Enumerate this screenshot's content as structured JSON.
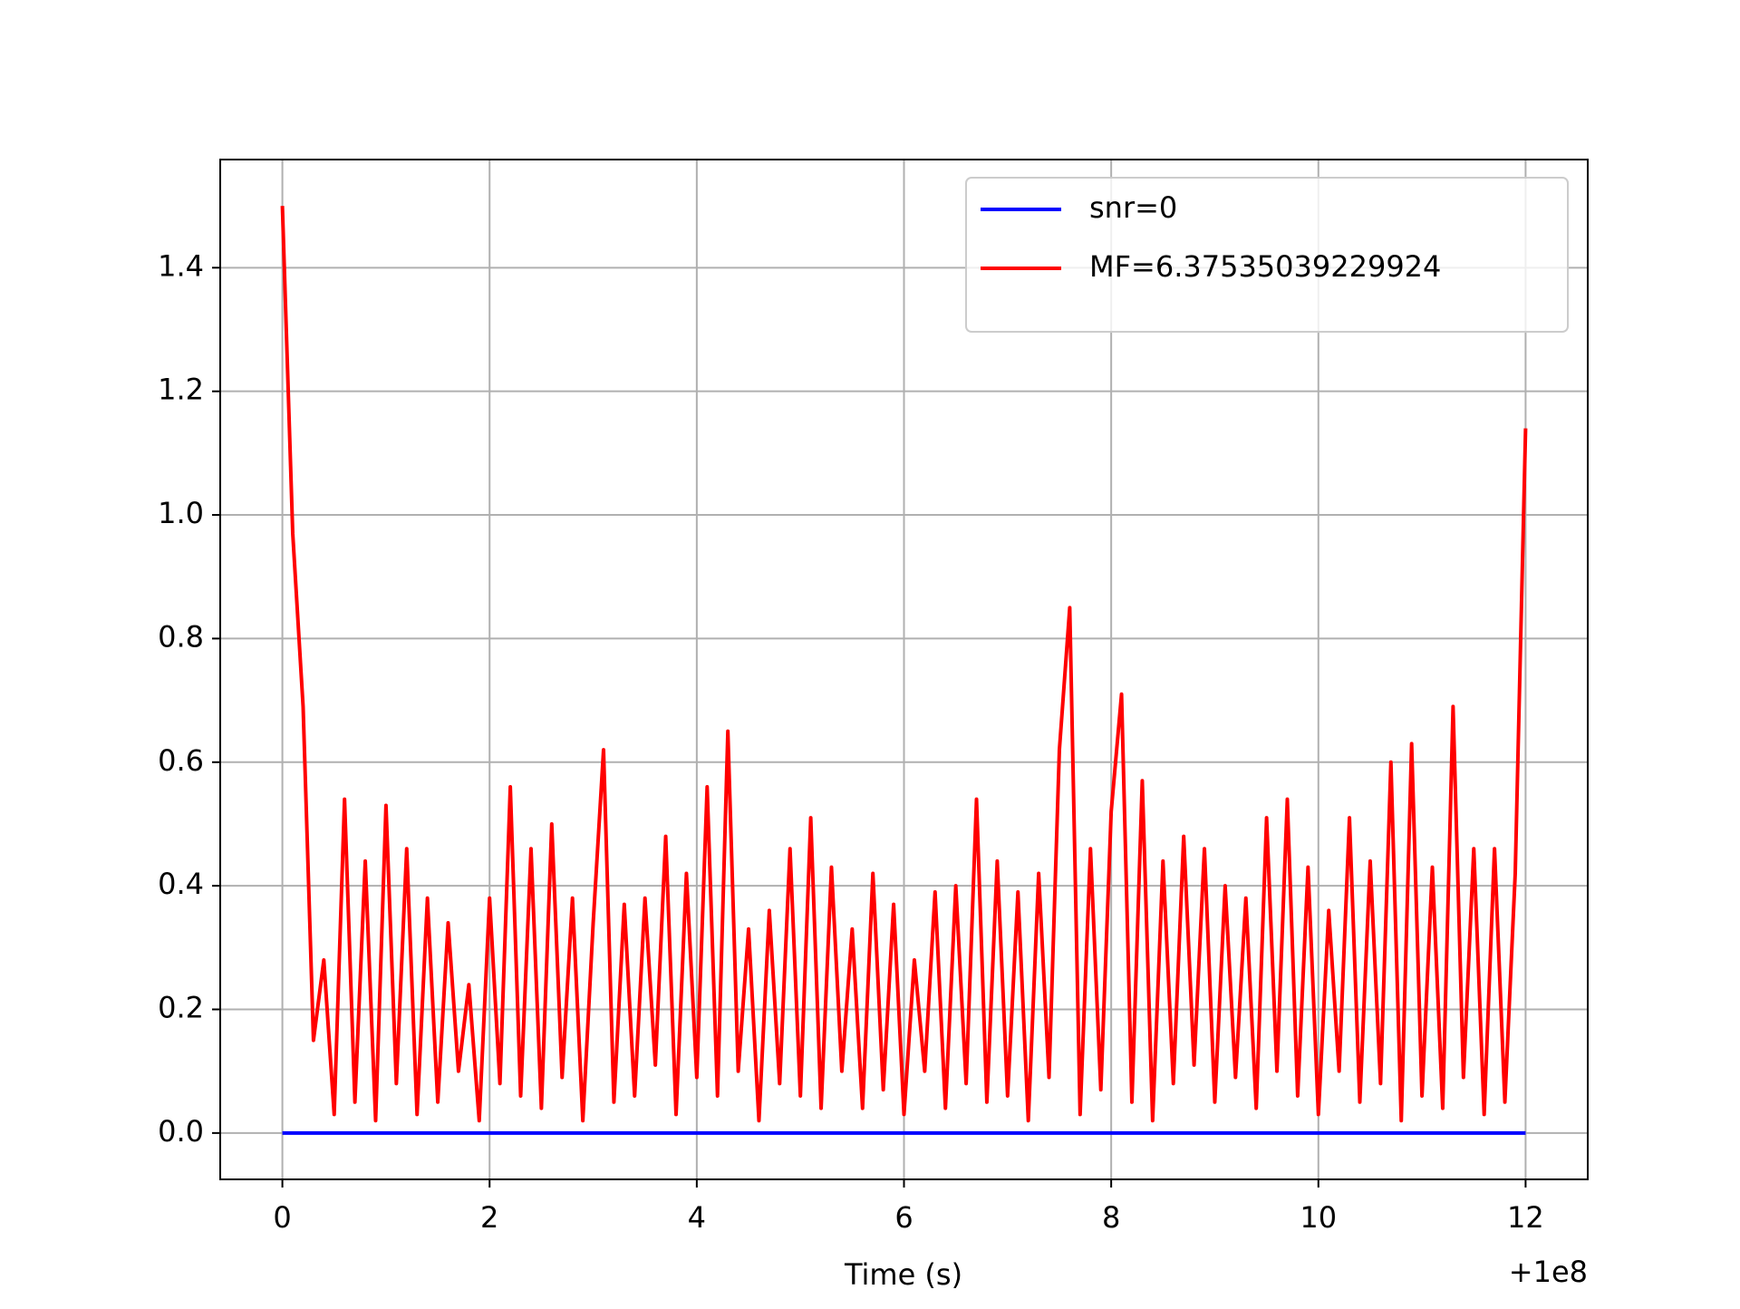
{
  "chart_data": {
    "type": "line",
    "xlabel": "Time (s)",
    "x_offset_label": "+1e8",
    "x": [
      0.0,
      0.1,
      0.2,
      0.3,
      0.4,
      0.5,
      0.6,
      0.7,
      0.8,
      0.9,
      1.0,
      1.1,
      1.2,
      1.3,
      1.4,
      1.5,
      1.6,
      1.7,
      1.8,
      1.9,
      2.0,
      2.1,
      2.2,
      2.3,
      2.4,
      2.5,
      2.6,
      2.7,
      2.8,
      2.9,
      3.0,
      3.1,
      3.2,
      3.3,
      3.4,
      3.5,
      3.6,
      3.7,
      3.8,
      3.9,
      4.0,
      4.1,
      4.2,
      4.3,
      4.4,
      4.5,
      4.6,
      4.7,
      4.8,
      4.9,
      5.0,
      5.1,
      5.2,
      5.3,
      5.4,
      5.5,
      5.6,
      5.7,
      5.8,
      5.9,
      6.0,
      6.1,
      6.2,
      6.3,
      6.4,
      6.5,
      6.6,
      6.7,
      6.8,
      6.9,
      7.0,
      7.1,
      7.2,
      7.3,
      7.4,
      7.5,
      7.6,
      7.7,
      7.8,
      7.9,
      8.0,
      8.1,
      8.2,
      8.3,
      8.4,
      8.5,
      8.6,
      8.7,
      8.8,
      8.9,
      9.0,
      9.1,
      9.2,
      9.3,
      9.4,
      9.5,
      9.6,
      9.7,
      9.8,
      9.9,
      10.0,
      10.1,
      10.2,
      10.3,
      10.4,
      10.5,
      10.6,
      10.7,
      10.8,
      10.9,
      11.0,
      11.1,
      11.2,
      11.3,
      11.4,
      11.5,
      11.6,
      11.7,
      11.8,
      11.9,
      12.0
    ],
    "series": [
      {
        "name": "snr=0",
        "color": "#0000ff",
        "values": [
          0,
          0,
          0,
          0,
          0,
          0,
          0,
          0,
          0,
          0,
          0,
          0,
          0,
          0,
          0,
          0,
          0,
          0,
          0,
          0,
          0,
          0,
          0,
          0,
          0,
          0,
          0,
          0,
          0,
          0,
          0,
          0,
          0,
          0,
          0,
          0,
          0,
          0,
          0,
          0,
          0,
          0,
          0,
          0,
          0,
          0,
          0,
          0,
          0,
          0,
          0,
          0,
          0,
          0,
          0,
          0,
          0,
          0,
          0,
          0,
          0,
          0,
          0,
          0,
          0,
          0,
          0,
          0,
          0,
          0,
          0,
          0,
          0,
          0,
          0,
          0,
          0,
          0,
          0,
          0,
          0,
          0,
          0,
          0,
          0,
          0,
          0,
          0,
          0,
          0,
          0,
          0,
          0,
          0,
          0,
          0,
          0,
          0,
          0,
          0,
          0,
          0,
          0,
          0,
          0,
          0,
          0,
          0,
          0,
          0,
          0,
          0,
          0,
          0,
          0,
          0,
          0,
          0,
          0,
          0,
          0
        ]
      },
      {
        "name": "MF=6.37535039229924",
        "color": "#ff0000",
        "values": [
          1.5,
          0.97,
          0.69,
          0.15,
          0.28,
          0.03,
          0.54,
          0.05,
          0.44,
          0.02,
          0.53,
          0.08,
          0.46,
          0.03,
          0.38,
          0.05,
          0.34,
          0.1,
          0.24,
          0.02,
          0.38,
          0.08,
          0.56,
          0.06,
          0.46,
          0.04,
          0.5,
          0.09,
          0.38,
          0.02,
          0.34,
          0.62,
          0.05,
          0.37,
          0.06,
          0.38,
          0.11,
          0.48,
          0.03,
          0.42,
          0.09,
          0.56,
          0.06,
          0.65,
          0.1,
          0.33,
          0.02,
          0.36,
          0.08,
          0.46,
          0.06,
          0.51,
          0.04,
          0.43,
          0.1,
          0.33,
          0.04,
          0.42,
          0.07,
          0.37,
          0.03,
          0.28,
          0.1,
          0.39,
          0.04,
          0.4,
          0.08,
          0.54,
          0.05,
          0.44,
          0.06,
          0.39,
          0.02,
          0.42,
          0.09,
          0.62,
          0.85,
          0.03,
          0.46,
          0.07,
          0.52,
          0.71,
          0.05,
          0.57,
          0.02,
          0.44,
          0.08,
          0.48,
          0.11,
          0.46,
          0.05,
          0.4,
          0.09,
          0.38,
          0.04,
          0.51,
          0.1,
          0.54,
          0.06,
          0.43,
          0.03,
          0.36,
          0.1,
          0.51,
          0.05,
          0.44,
          0.08,
          0.6,
          0.02,
          0.63,
          0.06,
          0.43,
          0.04,
          0.69,
          0.09,
          0.46,
          0.03,
          0.46,
          0.05,
          0.42,
          1.14
        ]
      }
    ],
    "xlim": [
      -0.6,
      12.6
    ],
    "ylim": [
      -0.075,
      1.575
    ],
    "xticks": [
      0,
      2,
      4,
      6,
      8,
      10,
      12
    ],
    "yticks": [
      {
        "value": 0,
        "label": "0.0"
      },
      0.2,
      0.4,
      0.6,
      0.8,
      {
        "value": 1,
        "label": "1.0"
      },
      1.2,
      1.4
    ],
    "grid": true,
    "legend": "upper right"
  }
}
